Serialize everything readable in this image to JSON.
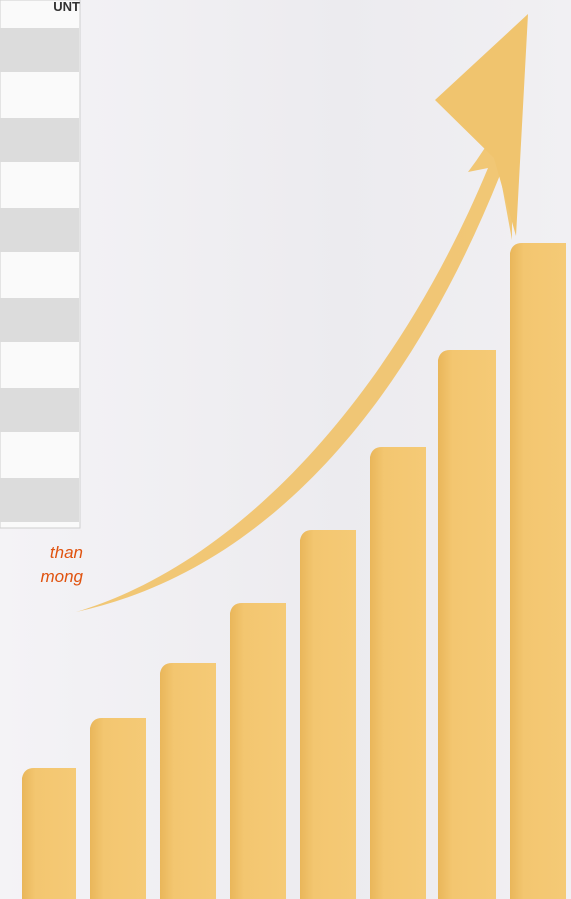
{
  "table": {
    "header": "UNT"
  },
  "caption": {
    "lines": [
      "than",
      "mong"
    ]
  }
}
